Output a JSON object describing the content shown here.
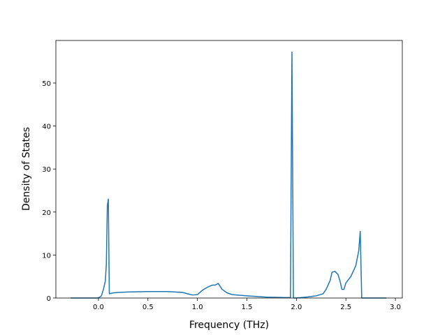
{
  "chart_data": {
    "type": "line",
    "x_label": "Frequency (THz)",
    "y_label": "Density of States",
    "series": [
      {
        "color": "#1f77b4",
        "x": [
          -0.28,
          0.0,
          0.03,
          0.05,
          0.07,
          0.08,
          0.09,
          0.1,
          0.11,
          0.15,
          0.2,
          0.3,
          0.5,
          0.7,
          0.85,
          0.9,
          0.95,
          1.0,
          1.05,
          1.1,
          1.15,
          1.18,
          1.21,
          1.25,
          1.3,
          1.35,
          1.5,
          1.7,
          1.9,
          1.94,
          1.955,
          1.97,
          2.0,
          2.1,
          2.2,
          2.27,
          2.3,
          2.34,
          2.36,
          2.39,
          2.42,
          2.44,
          2.46,
          2.48,
          2.5,
          2.55,
          2.6,
          2.63,
          2.645,
          2.66,
          2.91
        ],
        "values": [
          0,
          0,
          0.5,
          2,
          4,
          8,
          21.5,
          23,
          1,
          1.2,
          1.3,
          1.4,
          1.5,
          1.5,
          1.3,
          1.0,
          0.7,
          0.8,
          1.8,
          2.5,
          3.0,
          3.0,
          3.4,
          2.0,
          1.2,
          0.8,
          0.5,
          0.2,
          0.1,
          0.1,
          57.2,
          0,
          0,
          0.2,
          0.5,
          1.0,
          2,
          4,
          6,
          6.2,
          5.5,
          4,
          2,
          2,
          3.5,
          5,
          7.5,
          11,
          15.5,
          0,
          0
        ]
      }
    ],
    "xlim": [
      -0.43,
      3.07
    ],
    "xticks": [
      {
        "value": 0,
        "label": "0.0"
      },
      0.5,
      {
        "value": 1,
        "label": "1.0"
      },
      1.5,
      {
        "value": 2,
        "label": "2.0"
      },
      2.5,
      {
        "value": 3,
        "label": "3.0"
      }
    ],
    "ylim": [
      0,
      59.9
    ],
    "yticks": [
      0,
      10,
      20,
      30,
      40,
      50
    ]
  }
}
